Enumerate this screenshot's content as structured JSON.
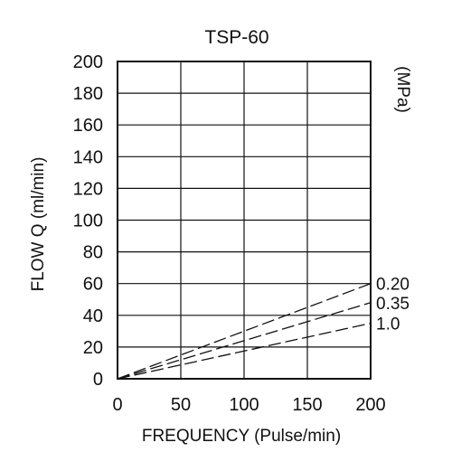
{
  "chart_data": {
    "type": "line",
    "title": "TSP-60",
    "xlabel": "FREQUENCY (Pulse/min)",
    "ylabel": "FLOW  Q (ml/min)",
    "pressure_unit": "(MPa)",
    "xlim": [
      0,
      200
    ],
    "ylim": [
      0,
      200
    ],
    "x_ticks": [
      "0",
      "50",
      "100",
      "150",
      "200"
    ],
    "y_ticks": [
      "0",
      "20",
      "40",
      "60",
      "80",
      "100",
      "120",
      "140",
      "160",
      "180",
      "200"
    ],
    "grid": true,
    "line_style": "dashed",
    "series": [
      {
        "name": "0.20",
        "x": [
          0,
          200
        ],
        "y": [
          0,
          60
        ]
      },
      {
        "name": "0.35",
        "x": [
          0,
          200
        ],
        "y": [
          0,
          48
        ]
      },
      {
        "name": "1.0",
        "x": [
          0,
          200
        ],
        "y": [
          0,
          35
        ]
      }
    ]
  }
}
